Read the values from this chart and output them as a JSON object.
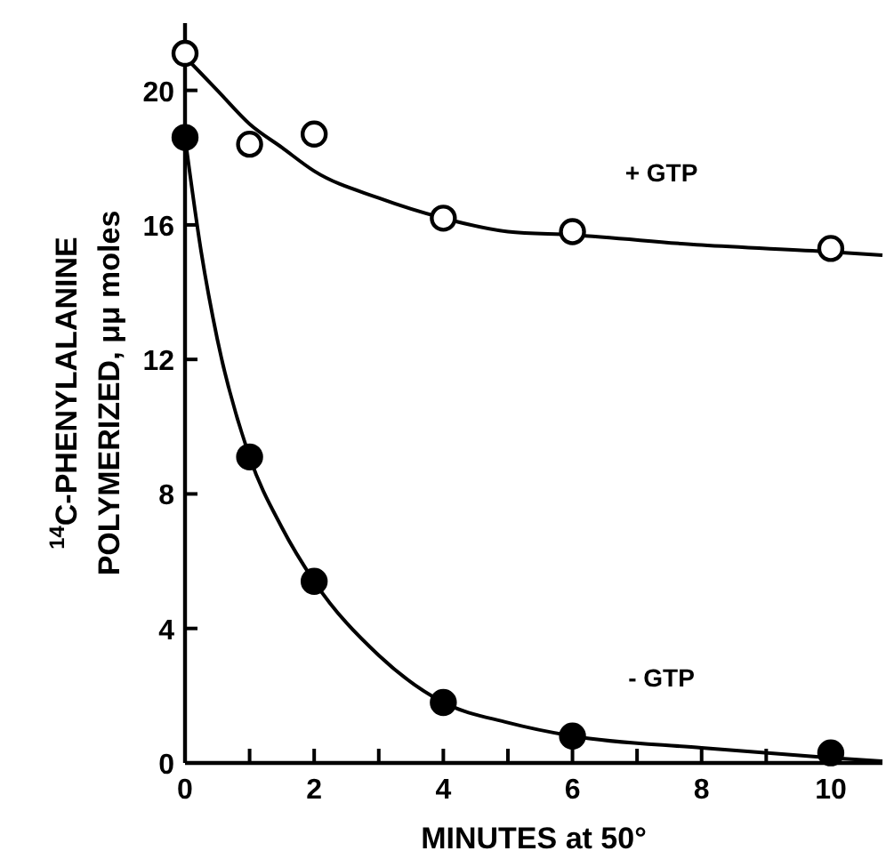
{
  "chart_data": {
    "type": "scatter",
    "xlabel": "MINUTES at 50°",
    "ylabel": "$^{14}$C-PHENYLALANINE\nPOLYMERIZED, μμ moles",
    "xlim": [
      0,
      10.8
    ],
    "ylim": [
      0,
      22
    ],
    "xticks": [
      0,
      {
        "value": 1,
        "label": null
      },
      2,
      {
        "value": 3,
        "label": null
      },
      4,
      {
        "value": 5,
        "label": null
      },
      6,
      {
        "value": 7,
        "label": null
      },
      8,
      {
        "value": 9,
        "label": null
      },
      10
    ],
    "yticks": [
      0,
      4,
      8,
      12,
      16,
      20
    ],
    "grid": false,
    "series": [
      {
        "name": "+ GTP",
        "marker": "circle",
        "color": "#ffffff",
        "x": [
          0,
          1,
          2,
          4,
          6,
          10
        ],
        "values": [
          21.1,
          18.4,
          18.7,
          16.2,
          15.8,
          15.3
        ]
      },
      {
        "name": "- GTP",
        "marker": "circle",
        "color": "#000000",
        "x": [
          0,
          1,
          2,
          4,
          6,
          10
        ],
        "values": [
          18.6,
          9.1,
          5.4,
          1.8,
          0.8,
          0.3
        ]
      },
      {
        "type": "line",
        "color": "#000000",
        "marker": "none",
        "x": [
          0,
          0.5,
          1,
          1.5,
          2,
          3,
          4,
          5,
          6,
          8,
          10,
          10.8
        ],
        "values": [
          21.0,
          20.0,
          19.0,
          18.3,
          17.6,
          16.8,
          16.2,
          15.8,
          15.7,
          15.4,
          15.2,
          15.1
        ]
      },
      {
        "type": "line",
        "color": "#000000",
        "marker": "none",
        "x": [
          0,
          0.25,
          0.5,
          1,
          1.5,
          2,
          3,
          4,
          5,
          6,
          8,
          10,
          10.8
        ],
        "values": [
          18.6,
          15.2,
          12.6,
          9.1,
          7.0,
          5.4,
          3.2,
          1.8,
          1.2,
          0.8,
          0.45,
          0.15,
          0.05
        ]
      }
    ]
  }
}
